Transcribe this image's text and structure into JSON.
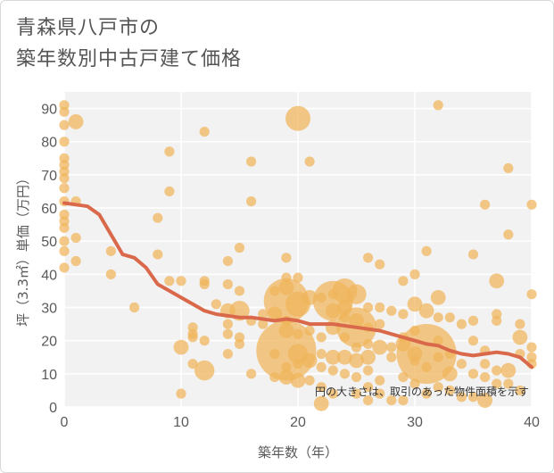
{
  "title_line1": "青森県八戸市の",
  "title_line2": "築年数別中古戸建て価格",
  "chart_data": {
    "type": "scatter",
    "title": "青森県八戸市の 築年数別中古戸建て価格",
    "xlabel": "築年数（年）",
    "ylabel": "坪（3.3㎡）単価（万円）",
    "xlim": [
      0,
      40
    ],
    "ylim": [
      0,
      95
    ],
    "x_ticks": [
      0,
      10,
      20,
      30,
      40
    ],
    "y_ticks": [
      0,
      10,
      20,
      30,
      40,
      50,
      60,
      70,
      80,
      90
    ],
    "grid": true,
    "note": "円の大きさは、取引のあった物件面積を示す",
    "colors": {
      "bubble": "#f0b45a",
      "trend": "#d9694a",
      "plot_bg": "#f2f2f2",
      "grid": "#ffffff"
    },
    "series": [
      {
        "type": "bubble",
        "points": [
          [
            0,
            91,
            2
          ],
          [
            0,
            89,
            2
          ],
          [
            0,
            85,
            2
          ],
          [
            0,
            80,
            2
          ],
          [
            0,
            75,
            2
          ],
          [
            0,
            73,
            2
          ],
          [
            0,
            71,
            2
          ],
          [
            0,
            69,
            2
          ],
          [
            0,
            66,
            2
          ],
          [
            0,
            62,
            2
          ],
          [
            0,
            58,
            2
          ],
          [
            0,
            56,
            2
          ],
          [
            0,
            54,
            2
          ],
          [
            0,
            50,
            2
          ],
          [
            0,
            47,
            2
          ],
          [
            0,
            42,
            2
          ],
          [
            1,
            86,
            3
          ],
          [
            1,
            62,
            2
          ],
          [
            1,
            51,
            2
          ],
          [
            1,
            44,
            2
          ],
          [
            4,
            47,
            2
          ],
          [
            4,
            40,
            2
          ],
          [
            6,
            30,
            2
          ],
          [
            8,
            57,
            2
          ],
          [
            8,
            46,
            2
          ],
          [
            9,
            77,
            2
          ],
          [
            9,
            65,
            2
          ],
          [
            9,
            38,
            2
          ],
          [
            10,
            38,
            2
          ],
          [
            10,
            18,
            3
          ],
          [
            10,
            4,
            2
          ],
          [
            11,
            24,
            2
          ],
          [
            11,
            22,
            2
          ],
          [
            11,
            21,
            2
          ],
          [
            11,
            13,
            2
          ],
          [
            12,
            83,
            2
          ],
          [
            12,
            38,
            2
          ],
          [
            12,
            37,
            2
          ],
          [
            12,
            20,
            2
          ],
          [
            12,
            11,
            4
          ],
          [
            13,
            31,
            2
          ],
          [
            14,
            44,
            2
          ],
          [
            14,
            37,
            2
          ],
          [
            14,
            29,
            3
          ],
          [
            14,
            25,
            2
          ],
          [
            14,
            22,
            2
          ],
          [
            14,
            16,
            2
          ],
          [
            15,
            48,
            2
          ],
          [
            15,
            35,
            2
          ],
          [
            15,
            29,
            4
          ],
          [
            15,
            21,
            2
          ],
          [
            15,
            19,
            2
          ],
          [
            16,
            74,
            2
          ],
          [
            16,
            62,
            2
          ],
          [
            16,
            26,
            2
          ],
          [
            16,
            10,
            2
          ],
          [
            17,
            28,
            2
          ],
          [
            17,
            25,
            2
          ],
          [
            18,
            35,
            2
          ],
          [
            18,
            28,
            3
          ],
          [
            18,
            16,
            2
          ],
          [
            18,
            9,
            2
          ],
          [
            19,
            45,
            2
          ],
          [
            19,
            39,
            2
          ],
          [
            19,
            36,
            3
          ],
          [
            19,
            32,
            9
          ],
          [
            19,
            26,
            2
          ],
          [
            19,
            23,
            3
          ],
          [
            19,
            17,
            12
          ],
          [
            19,
            12,
            2
          ],
          [
            19,
            9,
            3
          ],
          [
            20,
            87,
            5
          ],
          [
            20,
            39,
            2
          ],
          [
            20,
            31,
            5
          ],
          [
            20,
            22,
            2
          ],
          [
            20,
            16,
            4
          ],
          [
            20,
            13,
            2
          ],
          [
            20,
            8,
            3
          ],
          [
            21,
            74,
            2
          ],
          [
            21,
            33,
            3
          ],
          [
            21,
            23,
            2
          ],
          [
            21,
            14,
            3
          ],
          [
            21,
            8,
            2
          ],
          [
            22,
            33,
            2
          ],
          [
            22,
            21,
            2
          ],
          [
            22,
            16,
            2
          ],
          [
            22,
            12,
            2
          ],
          [
            22,
            6,
            2
          ],
          [
            22,
            1,
            3
          ],
          [
            23,
            34,
            2
          ],
          [
            23,
            32,
            8
          ],
          [
            23,
            29,
            3
          ],
          [
            23,
            24,
            3
          ],
          [
            23,
            15,
            3
          ],
          [
            23,
            11,
            2
          ],
          [
            23,
            4,
            2
          ],
          [
            24,
            35,
            5
          ],
          [
            24,
            30,
            3
          ],
          [
            24,
            27,
            2
          ],
          [
            24,
            21,
            2
          ],
          [
            24,
            15,
            3
          ],
          [
            24,
            10,
            2
          ],
          [
            25,
            34,
            4
          ],
          [
            25,
            26,
            3
          ],
          [
            25,
            24,
            8
          ],
          [
            25,
            18,
            2
          ],
          [
            25,
            14,
            3
          ],
          [
            25,
            9,
            2
          ],
          [
            25,
            4,
            2
          ],
          [
            26,
            45,
            2
          ],
          [
            26,
            30,
            2
          ],
          [
            26,
            24,
            2
          ],
          [
            26,
            19,
            2
          ],
          [
            26,
            15,
            3
          ],
          [
            26,
            11,
            2
          ],
          [
            26,
            6,
            2
          ],
          [
            26,
            2,
            2
          ],
          [
            27,
            43,
            2
          ],
          [
            27,
            30,
            2
          ],
          [
            27,
            25,
            2
          ],
          [
            27,
            18,
            3
          ],
          [
            27,
            8,
            2
          ],
          [
            27,
            4,
            2
          ],
          [
            28,
            29,
            2
          ],
          [
            28,
            18,
            2
          ],
          [
            28,
            15,
            2
          ],
          [
            28,
            2,
            2
          ],
          [
            29,
            38,
            2
          ],
          [
            29,
            28,
            2
          ],
          [
            29,
            21,
            2
          ],
          [
            29,
            19,
            3
          ],
          [
            29,
            9,
            2
          ],
          [
            29,
            2,
            2
          ],
          [
            30,
            40,
            2
          ],
          [
            30,
            31,
            3
          ],
          [
            30,
            23,
            2
          ],
          [
            30,
            16,
            3
          ],
          [
            30,
            14,
            2
          ],
          [
            30,
            7,
            2
          ],
          [
            31,
            47,
            2
          ],
          [
            31,
            29,
            3
          ],
          [
            31,
            16,
            12
          ],
          [
            31,
            12,
            2
          ],
          [
            31,
            4,
            2
          ],
          [
            32,
            91,
            2
          ],
          [
            32,
            33,
            3
          ],
          [
            32,
            27,
            2
          ],
          [
            32,
            20,
            2
          ],
          [
            32,
            15,
            2
          ],
          [
            32,
            6,
            2
          ],
          [
            33,
            27,
            2
          ],
          [
            33,
            16,
            2
          ],
          [
            33,
            10,
            3
          ],
          [
            33,
            5,
            2
          ],
          [
            34,
            25,
            2
          ],
          [
            34,
            13,
            2
          ],
          [
            34,
            3,
            2
          ],
          [
            35,
            46,
            2
          ],
          [
            35,
            26,
            2
          ],
          [
            35,
            20,
            2
          ],
          [
            35,
            10,
            2
          ],
          [
            35,
            3,
            2
          ],
          [
            36,
            61,
            2
          ],
          [
            36,
            17,
            2
          ],
          [
            36,
            13,
            2
          ],
          [
            36,
            9,
            2
          ],
          [
            36,
            2,
            3
          ],
          [
            37,
            38,
            3
          ],
          [
            37,
            28,
            2
          ],
          [
            37,
            26,
            2
          ],
          [
            37,
            11,
            2
          ],
          [
            37,
            7,
            2
          ],
          [
            38,
            72,
            2
          ],
          [
            38,
            52,
            2
          ],
          [
            38,
            11,
            3
          ],
          [
            38,
            7,
            2
          ],
          [
            39,
            25,
            2
          ],
          [
            39,
            21,
            3
          ],
          [
            39,
            16,
            2
          ],
          [
            39,
            5,
            2
          ],
          [
            40,
            61,
            2
          ],
          [
            40,
            34,
            2
          ],
          [
            40,
            18,
            2
          ],
          [
            40,
            15,
            2
          ],
          [
            40,
            13,
            2
          ]
        ]
      },
      {
        "type": "line",
        "points": [
          [
            0,
            61.5
          ],
          [
            1,
            61
          ],
          [
            2,
            60.5
          ],
          [
            3,
            58
          ],
          [
            4,
            52
          ],
          [
            5,
            46
          ],
          [
            6,
            45
          ],
          [
            7,
            42
          ],
          [
            8,
            37
          ],
          [
            9,
            35
          ],
          [
            10,
            33
          ],
          [
            11,
            31
          ],
          [
            12,
            29
          ],
          [
            13,
            28
          ],
          [
            14,
            27.5
          ],
          [
            15,
            27
          ],
          [
            16,
            27
          ],
          [
            17,
            26.5
          ],
          [
            18,
            26
          ],
          [
            19,
            26.5
          ],
          [
            20,
            26
          ],
          [
            21,
            25
          ],
          [
            22,
            25
          ],
          [
            23,
            25
          ],
          [
            24,
            24.5
          ],
          [
            25,
            24
          ],
          [
            26,
            23.5
          ],
          [
            27,
            23
          ],
          [
            28,
            22
          ],
          [
            29,
            21
          ],
          [
            30,
            20
          ],
          [
            31,
            19
          ],
          [
            32,
            18.5
          ],
          [
            33,
            17
          ],
          [
            34,
            16
          ],
          [
            35,
            15.5
          ],
          [
            36,
            16
          ],
          [
            37,
            16.5
          ],
          [
            38,
            16
          ],
          [
            39,
            15
          ],
          [
            40,
            12
          ]
        ]
      }
    ]
  }
}
